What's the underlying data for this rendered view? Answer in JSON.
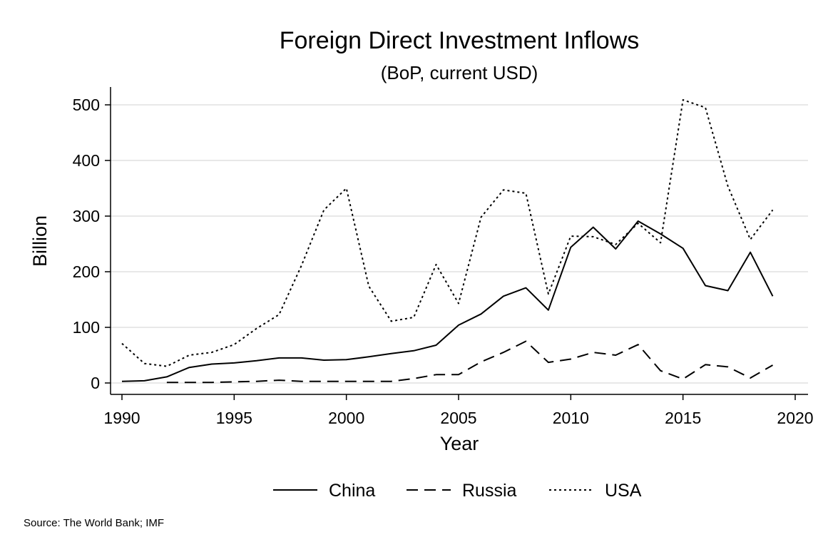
{
  "chart_data": {
    "type": "line",
    "title": "Foreign Direct Investment Inflows",
    "subtitle": "(BoP, current USD)",
    "xlabel": "Year",
    "ylabel": "Billion",
    "xlim": [
      1990,
      2020
    ],
    "ylim": [
      0,
      530
    ],
    "xticks": [
      1990,
      1995,
      2000,
      2005,
      2010,
      2015,
      2020
    ],
    "yticks": [
      0,
      100,
      200,
      300,
      400,
      500
    ],
    "grid": "horizontal",
    "legend_position": "bottom",
    "series": [
      {
        "name": "China",
        "style": "solid",
        "x": [
          1990,
          1991,
          1992,
          1993,
          1994,
          1995,
          1996,
          1997,
          1998,
          1999,
          2000,
          2001,
          2002,
          2003,
          2004,
          2005,
          2006,
          2007,
          2008,
          2009,
          2010,
          2011,
          2012,
          2013,
          2014,
          2015,
          2016,
          2017,
          2018,
          2019
        ],
        "values": [
          3,
          4,
          11,
          28,
          34,
          36,
          40,
          45,
          45,
          41,
          42,
          47,
          53,
          58,
          68,
          104,
          124,
          156,
          171,
          131,
          244,
          280,
          241,
          291,
          268,
          242,
          175,
          166,
          235,
          156
        ]
      },
      {
        "name": "Russia",
        "style": "dashed",
        "x": [
          1992,
          1993,
          1994,
          1995,
          1996,
          1997,
          1998,
          1999,
          2000,
          2001,
          2002,
          2003,
          2004,
          2005,
          2006,
          2007,
          2008,
          2009,
          2010,
          2011,
          2012,
          2013,
          2014,
          2015,
          2016,
          2017,
          2018,
          2019
        ],
        "values": [
          1,
          1,
          1,
          2,
          3,
          5,
          3,
          3,
          3,
          3,
          3,
          8,
          15,
          15,
          38,
          55,
          75,
          37,
          43,
          55,
          50,
          69,
          22,
          7,
          33,
          29,
          9,
          32
        ]
      },
      {
        "name": "USA",
        "style": "dotted",
        "x": [
          1990,
          1991,
          1992,
          1993,
          1994,
          1995,
          1996,
          1997,
          1998,
          1999,
          2000,
          2001,
          2002,
          2003,
          2004,
          2005,
          2006,
          2007,
          2008,
          2009,
          2010,
          2011,
          2012,
          2013,
          2014,
          2015,
          2016,
          2017,
          2018,
          2019
        ],
        "values": [
          71,
          35,
          30,
          50,
          55,
          69,
          98,
          123,
          211,
          311,
          350,
          174,
          111,
          118,
          213,
          143,
          298,
          347,
          341,
          160,
          264,
          263,
          249,
          287,
          252,
          509,
          495,
          354,
          258,
          311
        ]
      }
    ]
  },
  "source_note": "Source: The World Bank; IMF"
}
